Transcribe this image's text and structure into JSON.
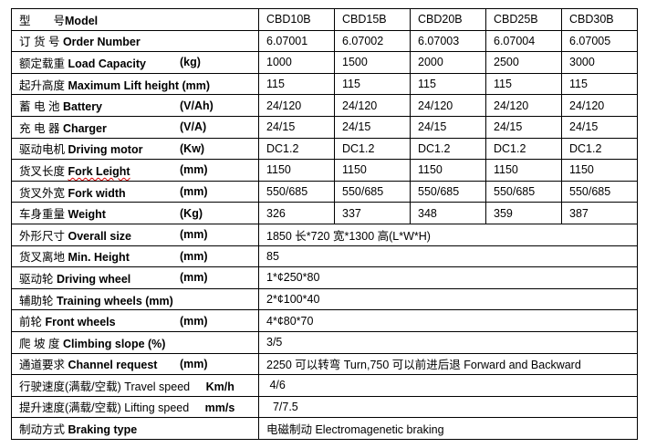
{
  "header": {
    "cn": "型　　号",
    "en": "Model",
    "models": [
      "CBD10B",
      "CBD15B",
      "CBD20B",
      "CBD25B",
      "CBD30B"
    ]
  },
  "rows_multi": [
    {
      "cn": "订 货 号",
      "en": "Order Number",
      "unit": "",
      "values": [
        "6.07001",
        "6.07002",
        "6.07003",
        "6.07004",
        "6.07005"
      ]
    },
    {
      "cn": "额定载重",
      "en": "Load Capacity",
      "unit": "(kg)",
      "values": [
        "1000",
        "1500",
        "2000",
        "2500",
        "3000"
      ]
    },
    {
      "cn": "起升高度",
      "en": "Maximum Lift height (mm)",
      "unit": "",
      "values": [
        "115",
        "115",
        "115",
        "115",
        "115"
      ]
    },
    {
      "cn": "蓄 电 池",
      "en": "Battery",
      "unit": "(V/Ah)",
      "values": [
        "24/120",
        "24/120",
        "24/120",
        "24/120",
        "24/120"
      ]
    },
    {
      "cn": "充  电  器",
      "en": "Charger",
      "unit": "(V/A)",
      "values": [
        "24/15",
        "24/15",
        "24/15",
        "24/15",
        "24/15"
      ]
    },
    {
      "cn": "驱动电机",
      "en": "Driving motor",
      "unit": "(Kw)",
      "values": [
        "DC1.2",
        "DC1.2",
        "DC1.2",
        "DC1.2",
        "DC1.2"
      ]
    },
    {
      "cn": "货叉长度",
      "en": "Fork Leight",
      "unit": "(mm)",
      "values": [
        "1150",
        "1150",
        "1150",
        "1150",
        "1150"
      ]
    },
    {
      "cn": "货叉外宽",
      "en": "Fork width",
      "unit": "(mm)",
      "values": [
        "550/685",
        "550/685",
        "550/685",
        "550/685",
        "550/685"
      ]
    },
    {
      "cn": "车身重量",
      "en": "Weight",
      "unit": "(Kg)",
      "values": [
        "326",
        "337",
        "348",
        "359",
        "387"
      ]
    }
  ],
  "rows_single": [
    {
      "cn": "外形尺寸",
      "en": "Overall size",
      "unit": "(mm)",
      "value": "1850 长*720 宽*1300 高(L*W*H)"
    },
    {
      "cn": "货叉离地",
      "en": "Min. Height",
      "unit": "(mm)",
      "value": "85"
    },
    {
      "cn": "驱动轮",
      "en": "Driving wheel",
      "unit": "(mm)",
      "value": "1*¢250*80"
    },
    {
      "cn": "辅助轮",
      "en": "Training wheels (mm)",
      "unit": "",
      "value": "2*¢100*40"
    },
    {
      "cn": "前轮",
      "en": "Front wheels",
      "unit": "(mm)",
      "value": "4*¢80*70"
    },
    {
      "cn": "爬  坡  度",
      "en": "Climbing slope (%)",
      "unit": "",
      "value": "3/5"
    },
    {
      "cn": "通道要求",
      "en": "Channel request",
      "unit": "(mm)",
      "value": "2250 可以转弯 Turn,750 可以前进后退 Forward and Backward"
    },
    {
      "cn": "行驶速度(满载/空载)",
      "en": "Travel speed",
      "unit": "Km/h",
      "value": " 4/6"
    },
    {
      "cn": "提升速度(满载/空载)",
      "en": "Lifting speed",
      "unit": "mm/s",
      "value": "  7/7.5"
    },
    {
      "cn": "制动方式",
      "en": "Braking type",
      "unit": "",
      "value": "电磁制动 Electromagenetic braking"
    }
  ]
}
